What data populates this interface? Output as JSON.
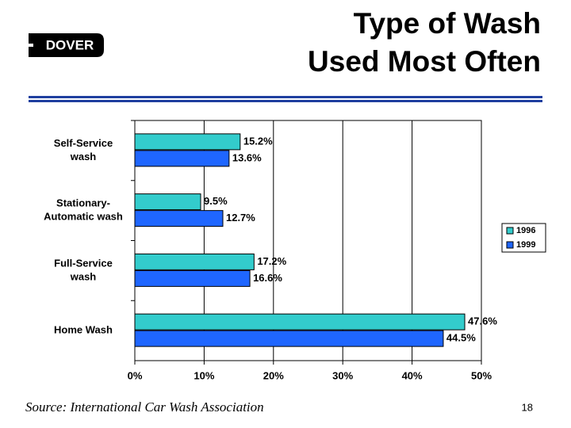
{
  "logo": "DOVER",
  "chart_data": {
    "type": "hbar",
    "title": [
      "Type of Wash",
      "Used Most Often"
    ],
    "categories": [
      [
        "Self-Service",
        "wash"
      ],
      [
        "Stationary-",
        "Automatic wash"
      ],
      [
        "Full-Service",
        "wash"
      ],
      [
        "Home Wash"
      ]
    ],
    "series": [
      {
        "name": "1996",
        "color": "#33cccc",
        "values": [
          15.2,
          9.5,
          17.2,
          47.6
        ],
        "value_labels": [
          "15.2%",
          "9.5%",
          "17.2%",
          "47.6%"
        ]
      },
      {
        "name": "1999",
        "color": "#1f66ff",
        "values": [
          13.6,
          12.7,
          16.6,
          44.5
        ],
        "value_labels": [
          "13.6%",
          "12.7%",
          "16.6%",
          "44.5%"
        ]
      }
    ],
    "xlim": [
      0,
      50
    ],
    "xticks": [
      {
        "value": 0,
        "label": "0%"
      },
      {
        "value": 10,
        "label": "10%"
      },
      {
        "value": 20,
        "label": "20%"
      },
      {
        "value": 30,
        "label": "30%"
      },
      {
        "value": 40,
        "label": "40%"
      },
      {
        "value": 50,
        "label": "50%"
      }
    ],
    "grid": true,
    "legend": "right"
  },
  "source": "Source: International Car Wash Association",
  "page_number": "18"
}
